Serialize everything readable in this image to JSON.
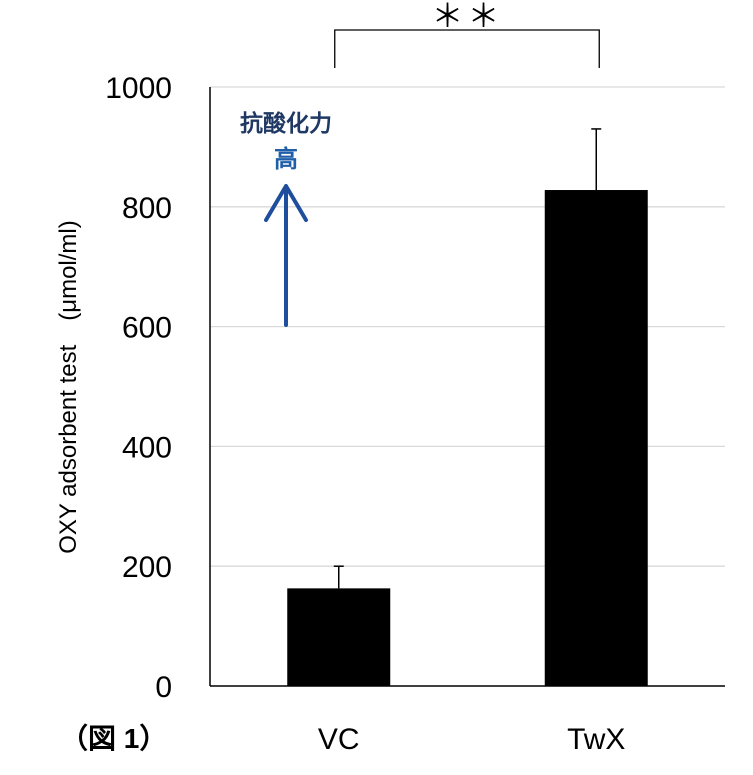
{
  "chart_data": {
    "type": "bar",
    "categories": [
      "VC",
      "TwX"
    ],
    "series": [
      {
        "name": "OXY adsorbent test",
        "values": [
          163,
          828
        ],
        "error_plus": [
          37,
          102
        ]
      }
    ],
    "ylabel": "OXY adsorbent test　(μmol/ml)",
    "xlabel": "",
    "ylim": [
      0,
      1000
    ],
    "yticks": [
      0,
      200,
      400,
      600,
      800,
      1000
    ],
    "ytick_labels": [
      "0",
      "200",
      "400",
      "600",
      "800",
      "1000"
    ],
    "grid": true,
    "significance": {
      "label": "＊＊",
      "between": [
        "VC",
        "TwX"
      ]
    },
    "annotation": {
      "line1": "抗酸化力",
      "line2": "高",
      "arrow": "up"
    },
    "figure_label": "（図 1）",
    "colors": {
      "bar": "#000000",
      "grid": "#d9d9d9",
      "axis": "#000000",
      "annotation_top": "#1f3864",
      "annotation_bottom": "#1f5ea8",
      "arrow": "#1f4e9c"
    }
  }
}
